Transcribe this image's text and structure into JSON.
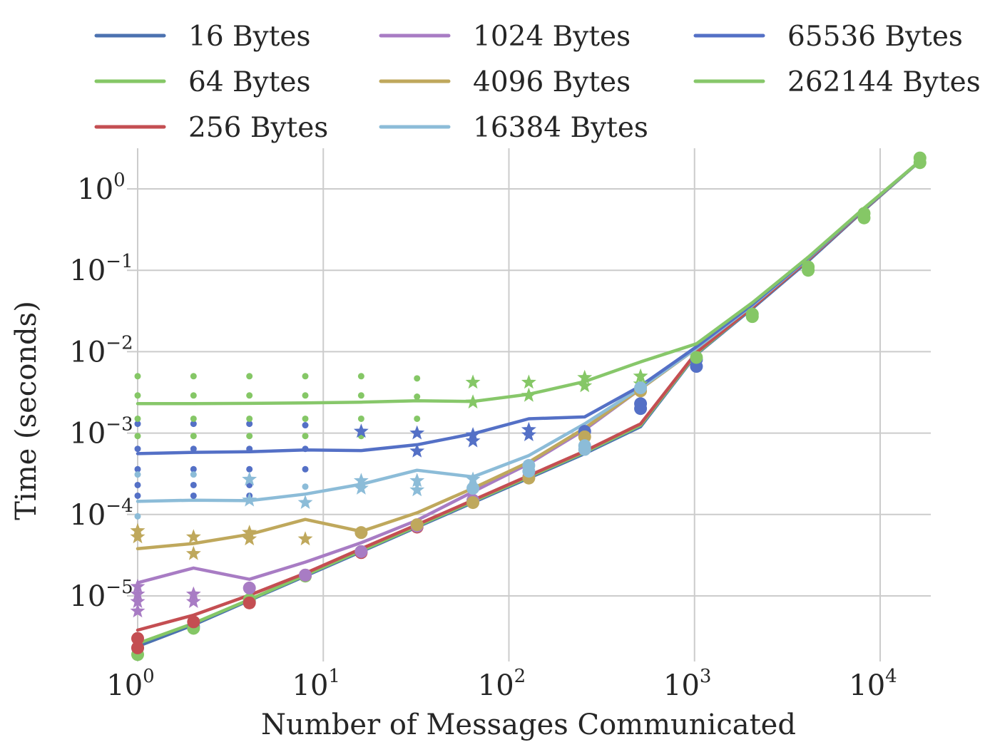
{
  "chart_data": {
    "type": "line",
    "title": "",
    "xlabel": "Number of Messages Communicated",
    "ylabel": "Time (seconds)",
    "xscale": "log",
    "yscale": "log",
    "xlim": [
      1,
      17000
    ],
    "ylim": [
      1.3e-06,
      3.5
    ],
    "grid": true,
    "legend_position": "top",
    "xticks": [
      {
        "value": 1,
        "base": "10",
        "exp": "0"
      },
      {
        "value": 10,
        "base": "10",
        "exp": "1"
      },
      {
        "value": 100,
        "base": "10",
        "exp": "2"
      },
      {
        "value": 1000,
        "base": "10",
        "exp": "3"
      },
      {
        "value": 10000,
        "base": "10",
        "exp": "4"
      }
    ],
    "yticks": [
      {
        "value": 1e-05,
        "base": "10",
        "exp": "−5"
      },
      {
        "value": 0.0001,
        "base": "10",
        "exp": "−4"
      },
      {
        "value": 0.001,
        "base": "10",
        "exp": "−3"
      },
      {
        "value": 0.01,
        "base": "10",
        "exp": "−2"
      },
      {
        "value": 0.1,
        "base": "10",
        "exp": "−1"
      },
      {
        "value": 1,
        "base": "10",
        "exp": "0"
      }
    ],
    "x": [
      1,
      2,
      4,
      8,
      16,
      32,
      64,
      128,
      256,
      512,
      1024,
      2048,
      4096,
      8192,
      16384
    ],
    "series": [
      {
        "name": "16 Bytes",
        "color": "#4c72b0",
        "values": [
          2.4e-06,
          4.4e-06,
          8.8e-06,
          1.75e-05,
          3.5e-05,
          7e-05,
          0.00014,
          0.00028,
          0.00056,
          0.0012,
          0.0093,
          0.034,
          0.13,
          0.55,
          2.2
        ]
      },
      {
        "name": "64 Bytes",
        "color": "#85c766",
        "values": [
          2.6e-06,
          4.6e-06,
          9e-06,
          1.8e-05,
          3.6e-05,
          7.2e-05,
          0.000145,
          0.00029,
          0.00058,
          0.00125,
          0.0095,
          0.035,
          0.135,
          0.56,
          2.2
        ]
      },
      {
        "name": "256 Bytes",
        "color": "#c44e52",
        "values": [
          3.8e-06,
          5.8e-06,
          1.02e-05,
          1.9e-05,
          3.8e-05,
          7.5e-05,
          0.00015,
          0.0003,
          0.0006,
          0.0013,
          0.0098,
          0.035,
          0.135,
          0.56,
          2.2
        ]
      },
      {
        "name": "1024 Bytes",
        "color": "#a87cc4",
        "values": [
          1.45e-05,
          2.2e-05,
          1.6e-05,
          2.6e-05,
          4.5e-05,
          8.5e-05,
          0.00019,
          0.00042,
          0.0011,
          0.0035,
          0.011,
          0.037,
          0.14,
          0.57,
          2.2
        ]
      },
      {
        "name": "4096 Bytes",
        "color": "#bfa85c",
        "values": [
          3.8e-05,
          4.4e-05,
          5.7e-05,
          8.7e-05,
          6.2e-05,
          0.000105,
          0.00021,
          0.00044,
          0.00115,
          0.0035,
          0.011,
          0.037,
          0.14,
          0.57,
          2.2
        ]
      },
      {
        "name": "16384 Bytes",
        "color": "#8cbcd8",
        "values": [
          0.000145,
          0.00015,
          0.000148,
          0.000178,
          0.000235,
          0.00035,
          0.00029,
          0.00053,
          0.0013,
          0.0036,
          0.011,
          0.037,
          0.14,
          0.57,
          2.2
        ]
      },
      {
        "name": "65536 Bytes",
        "color": "#5470c6",
        "values": [
          0.00056,
          0.00058,
          0.00059,
          0.00062,
          0.00061,
          0.00072,
          0.00098,
          0.0015,
          0.00158,
          0.0038,
          0.0115,
          0.038,
          0.142,
          0.57,
          2.2
        ]
      },
      {
        "name": "262144 Bytes",
        "color": "#87c76a",
        "values": [
          0.0023,
          0.0023,
          0.00232,
          0.00235,
          0.0024,
          0.0025,
          0.00245,
          0.003,
          0.0043,
          0.0075,
          0.0125,
          0.04,
          0.145,
          0.58,
          2.2
        ]
      }
    ],
    "markers": [
      {
        "color": "#5470c6",
        "shape": "dot",
        "points": [
          [
            1,
            0.0013
          ],
          [
            2,
            0.0013
          ],
          [
            4,
            0.0013
          ],
          [
            8,
            0.00125
          ],
          [
            1,
            0.00064
          ],
          [
            2,
            0.00064
          ],
          [
            4,
            0.00064
          ],
          [
            8,
            0.00064
          ],
          [
            1,
            0.00036
          ],
          [
            2,
            0.00036
          ],
          [
            4,
            0.00036
          ],
          [
            8,
            0.00036
          ],
          [
            1,
            0.00023
          ],
          [
            2,
            0.00023
          ],
          [
            4,
            0.00023
          ],
          [
            1,
            0.00017
          ],
          [
            2,
            0.00017
          ],
          [
            4,
            0.00017
          ]
        ]
      },
      {
        "color": "#85c766",
        "shape": "dot",
        "points": [
          [
            1,
            0.005
          ],
          [
            2,
            0.005
          ],
          [
            4,
            0.005
          ],
          [
            8,
            0.005
          ],
          [
            16,
            0.005
          ],
          [
            32,
            0.0047
          ],
          [
            1,
            0.0029
          ],
          [
            2,
            0.0029
          ],
          [
            4,
            0.0029
          ],
          [
            8,
            0.0029
          ],
          [
            16,
            0.0029
          ],
          [
            32,
            0.0028
          ],
          [
            1,
            0.0015
          ],
          [
            2,
            0.0015
          ],
          [
            4,
            0.0015
          ],
          [
            8,
            0.0015
          ],
          [
            16,
            0.0015
          ],
          [
            32,
            0.0015
          ],
          [
            1,
            0.00092
          ],
          [
            2,
            0.00092
          ],
          [
            4,
            0.00092
          ],
          [
            8,
            0.00092
          ],
          [
            16,
            0.00092
          ]
        ]
      },
      {
        "color": "#8cbcd8",
        "shape": "dot",
        "points": [
          [
            1,
            0.00031
          ],
          [
            2,
            0.00031
          ],
          [
            1,
            9.5e-05
          ],
          [
            8,
            0.00022
          ],
          [
            16,
            0.00022
          ],
          [
            32,
            0.00024
          ],
          [
            64,
            0.00023
          ],
          [
            64,
            0.0002
          ]
        ]
      },
      {
        "color": "#5470c6",
        "shape": "star",
        "points": [
          [
            16,
            0.00105
          ],
          [
            32,
            0.001
          ],
          [
            32,
            0.0006
          ],
          [
            64,
            0.0008
          ],
          [
            64,
            0.00095
          ],
          [
            128,
            0.00095
          ],
          [
            128,
            0.0011
          ]
        ]
      },
      {
        "color": "#85c766",
        "shape": "star",
        "points": [
          [
            64,
            0.0042
          ],
          [
            64,
            0.0024
          ],
          [
            128,
            0.0042
          ],
          [
            128,
            0.0029
          ],
          [
            256,
            0.0048
          ],
          [
            256,
            0.0038
          ],
          [
            512,
            0.005
          ],
          [
            512,
            0.004
          ]
        ]
      },
      {
        "color": "#8cbcd8",
        "shape": "star",
        "points": [
          [
            4,
            0.00027
          ],
          [
            4,
            0.00015
          ],
          [
            8,
            0.00014
          ],
          [
            16,
            0.00026
          ],
          [
            16,
            0.00021
          ],
          [
            32,
            0.0002
          ],
          [
            32,
            0.00026
          ],
          [
            64,
            0.00027
          ]
        ]
      },
      {
        "color": "#bfa85c",
        "shape": "star",
        "points": [
          [
            1,
            6.3e-05
          ],
          [
            1,
            5.3e-05
          ],
          [
            2,
            5.3e-05
          ],
          [
            2,
            3.3e-05
          ],
          [
            4,
            5e-05
          ],
          [
            4,
            6e-05
          ],
          [
            8,
            5e-05
          ]
        ]
      },
      {
        "color": "#a87cc4",
        "shape": "star",
        "points": [
          [
            1,
            1.3e-05
          ],
          [
            1,
            1.05e-05
          ],
          [
            1,
            8.5e-06
          ],
          [
            1,
            6.5e-06
          ],
          [
            2,
            1.05e-05
          ],
          [
            2,
            8.5e-06
          ]
        ]
      },
      {
        "color": "#5470c6",
        "shape": "big",
        "points": [
          [
            1,
            2.3e-06
          ],
          [
            2,
            4.2e-06
          ],
          [
            4,
            8.5e-06
          ],
          [
            256,
            0.00105
          ],
          [
            512,
            0.002
          ],
          [
            512,
            0.0023
          ],
          [
            1024,
            0.0066
          ],
          [
            1024,
            0.008
          ]
        ]
      },
      {
        "color": "#85c766",
        "shape": "big",
        "points": [
          [
            1,
            1.9e-06
          ],
          [
            2,
            4e-06
          ],
          [
            4,
            9e-06
          ],
          [
            8,
            1.75e-05
          ],
          [
            16,
            3.5e-05
          ],
          [
            1024,
            0.0085
          ],
          [
            2048,
            0.027
          ],
          [
            2048,
            0.029
          ],
          [
            4096,
            0.1
          ],
          [
            4096,
            0.11
          ],
          [
            8192,
            0.44
          ],
          [
            8192,
            0.5
          ],
          [
            16384,
            2.1
          ],
          [
            16384,
            2.4
          ]
        ]
      },
      {
        "color": "#c44e52",
        "shape": "big",
        "points": [
          [
            1,
            3e-06
          ],
          [
            1,
            2.3e-06
          ],
          [
            2,
            4.8e-06
          ],
          [
            4,
            8.2e-06
          ],
          [
            8,
            1.8e-05
          ],
          [
            16,
            3.4e-05
          ],
          [
            32,
            7e-05
          ]
        ]
      },
      {
        "color": "#a87cc4",
        "shape": "big",
        "points": [
          [
            4,
            1.25e-05
          ],
          [
            8,
            1.8e-05
          ],
          [
            16,
            3.5e-05
          ],
          [
            32,
            7.2e-05
          ],
          [
            64,
            0.00015
          ],
          [
            128,
            0.00029
          ]
        ]
      },
      {
        "color": "#bfa85c",
        "shape": "big",
        "points": [
          [
            16,
            6e-05
          ],
          [
            32,
            7.5e-05
          ],
          [
            64,
            0.00014
          ],
          [
            128,
            0.00028
          ],
          [
            256,
            0.0009
          ],
          [
            512,
            0.0033
          ]
        ]
      },
      {
        "color": "#8cbcd8",
        "shape": "big",
        "points": [
          [
            64,
            0.00021
          ],
          [
            128,
            0.00034
          ],
          [
            128,
            0.0004
          ],
          [
            256,
            0.00063
          ],
          [
            256,
            0.0007
          ],
          [
            512,
            0.0036
          ]
        ]
      }
    ]
  }
}
